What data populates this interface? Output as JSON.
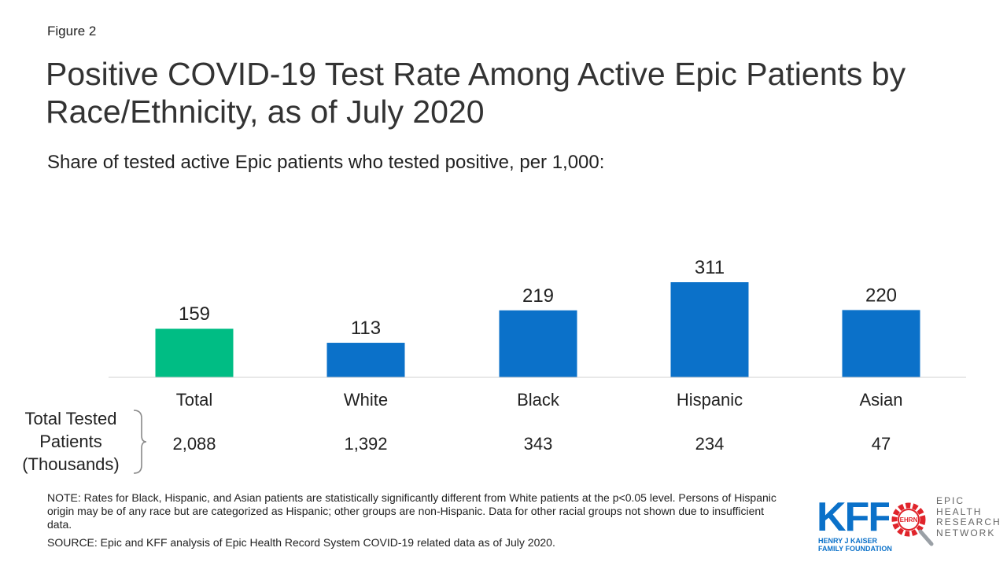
{
  "figure_label": "Figure 2",
  "title": "Positive COVID-19 Test Rate Among Active Epic Patients by Race/Ethnicity, as of July 2020",
  "subtitle": "Share of tested active Epic patients who tested positive, per 1,000:",
  "colors": {
    "total_bar": "#00bd84",
    "group_bar": "#0b71c9",
    "axis_line": "#d0d0d0",
    "brace": "#888888"
  },
  "chart_data": {
    "type": "bar",
    "title": "Positive COVID-19 Test Rate Among Active Epic Patients by Race/Ethnicity, as of July 2020",
    "subtitle": "Share of tested active Epic patients who tested positive, per 1,000:",
    "categories": [
      "Total",
      "White",
      "Black",
      "Hispanic",
      "Asian"
    ],
    "values": [
      159,
      113,
      219,
      311,
      220
    ],
    "bar_colors": [
      "#00bd84",
      "#0b71c9",
      "#0b71c9",
      "#0b71c9",
      "#0b71c9"
    ],
    "ylim": [
      0,
      311
    ],
    "data_labels": true,
    "grid": false,
    "legend": "none"
  },
  "tested": {
    "title_lines": [
      "Total Tested",
      "Patients",
      "(Thousands)"
    ],
    "values": [
      "2,088",
      "1,392",
      "343",
      "234",
      "47"
    ]
  },
  "notes": {
    "note": "NOTE: Rates for Black, Hispanic, and Asian patients are statistically significantly different from White patients at the p<0.05 level. Persons of Hispanic origin may be of any race but are categorized as Hispanic; other groups are non-Hispanic. Data for other racial groups not shown due to insufficient data.",
    "source": "SOURCE: Epic and KFF analysis of Epic Health Record System COVID-19 related data as of July 2020."
  },
  "logos": {
    "kff_text": "KFF",
    "kff_sub_lines": [
      "HENRY J KAISER",
      "FAMILY FOUNDATION"
    ],
    "ehrn_badge": "EHRN",
    "ehrn_lines": [
      "EPIC",
      "HEALTH",
      "RESEARCH",
      "NETWORK"
    ]
  }
}
